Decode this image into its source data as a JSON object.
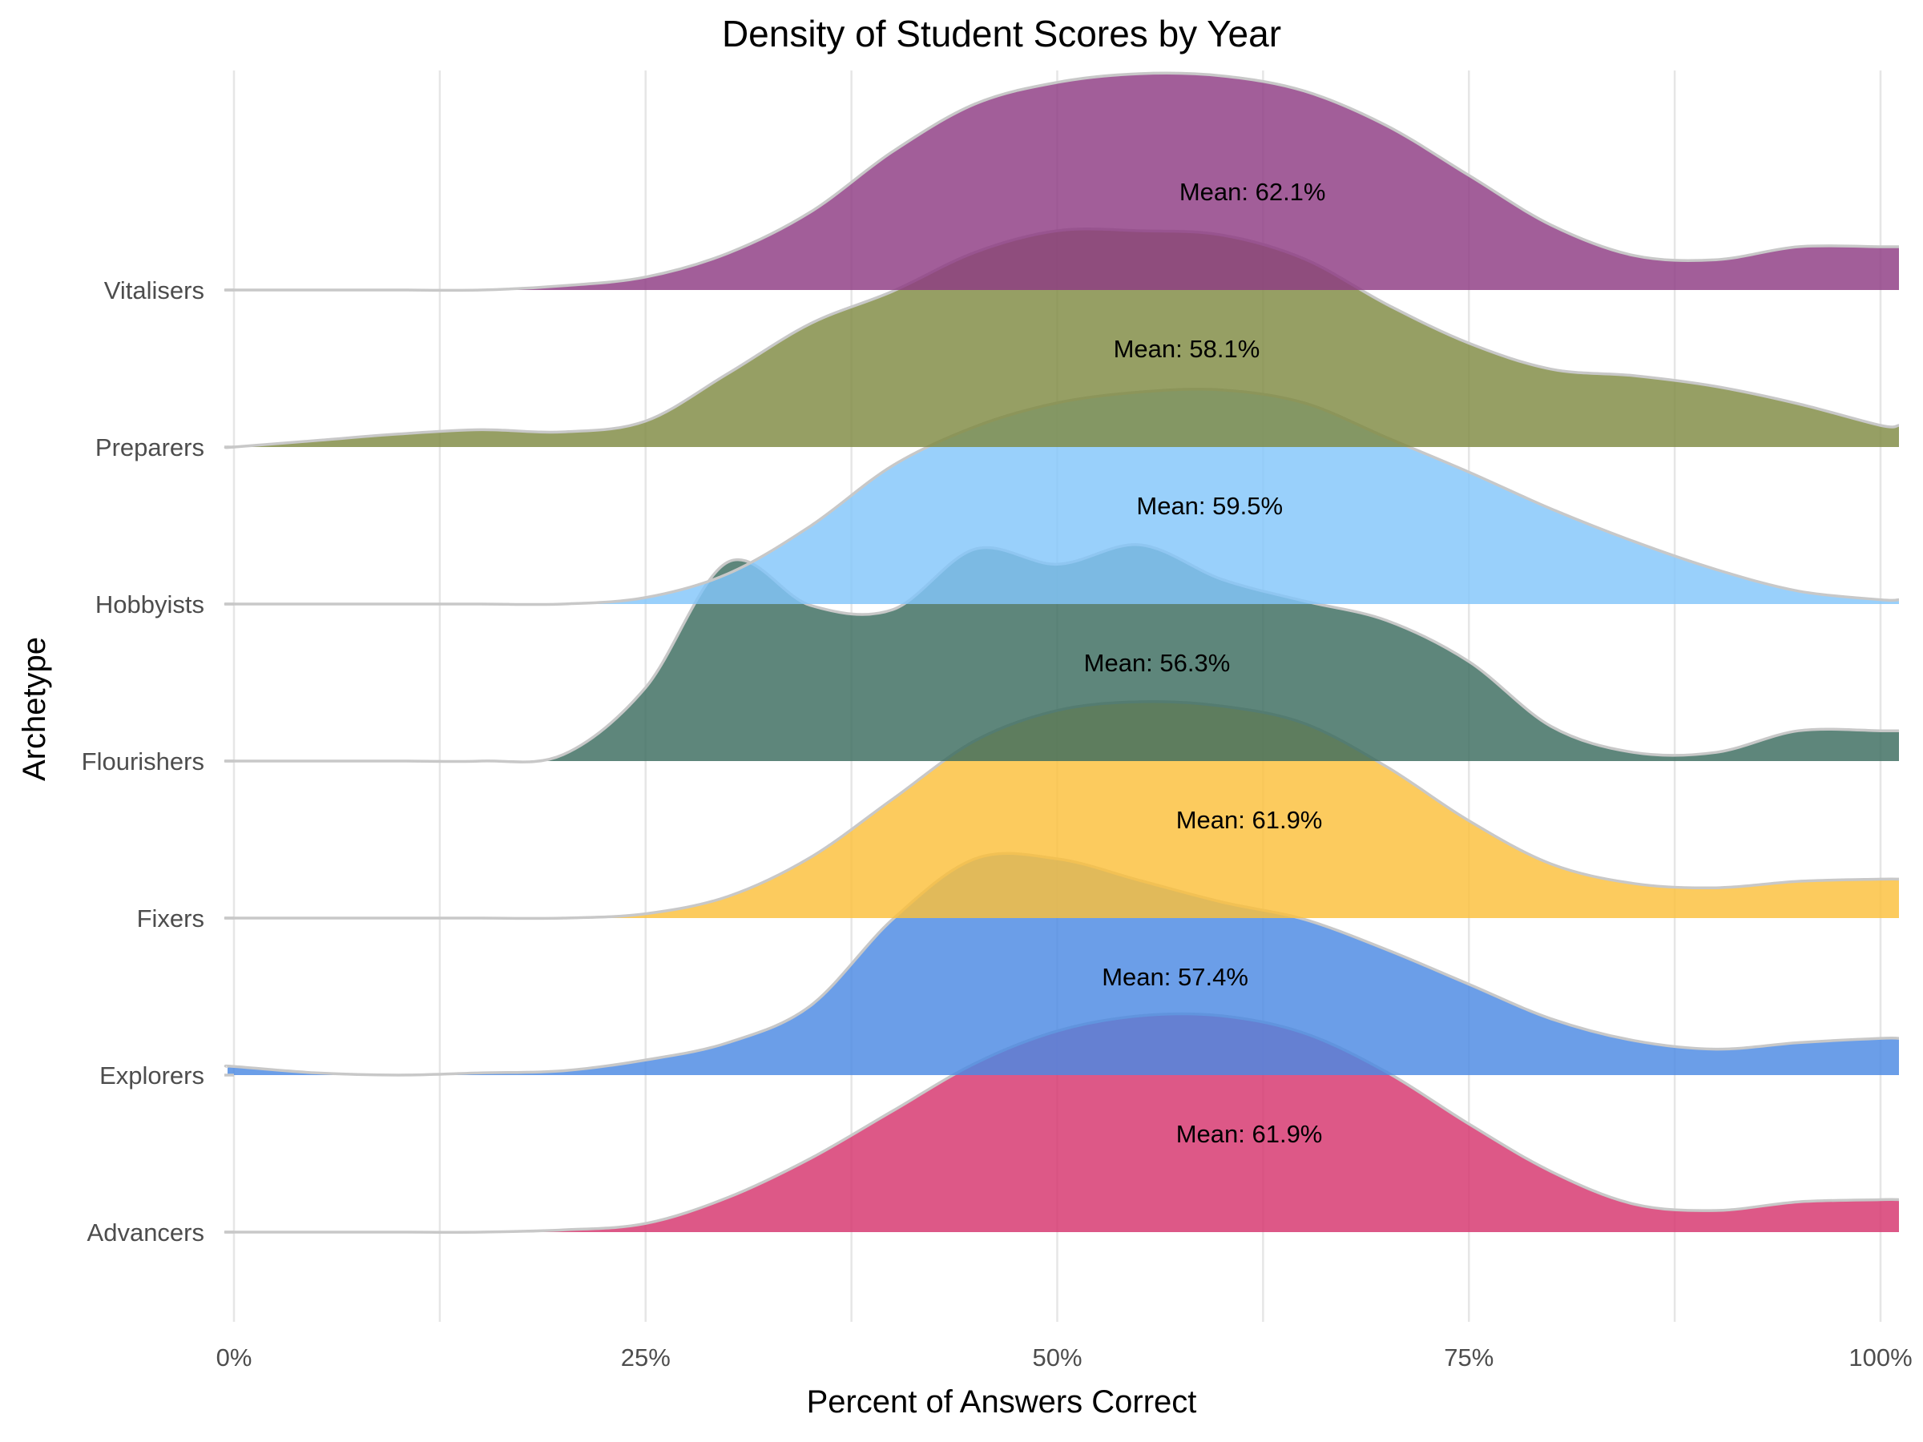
{
  "chart_data": {
    "type": "ridgeline",
    "title": "Density of Student Scores by Year",
    "xlabel": "Percent of Answers Correct",
    "ylabel": "Archetype",
    "xlim": [
      0,
      100
    ],
    "x_ticks": [
      {
        "value": 0,
        "label": "0%"
      },
      {
        "value": 25,
        "label": "25%"
      },
      {
        "value": 50,
        "label": "50%"
      },
      {
        "value": 75,
        "label": "75%"
      },
      {
        "value": 100,
        "label": "100%"
      }
    ],
    "grid": true,
    "legend": "none",
    "density_x": [
      0,
      5,
      10,
      15,
      20,
      25,
      30,
      35,
      40,
      45,
      50,
      55,
      60,
      65,
      70,
      75,
      80,
      85,
      90,
      95,
      100
    ],
    "series": [
      {
        "name": "Advancers",
        "color": "#d6336c",
        "mean": 61.9,
        "mean_label": "Mean: 61.9%",
        "density": [
          0,
          0,
          0,
          0,
          0.01,
          0.04,
          0.16,
          0.34,
          0.56,
          0.78,
          0.93,
          1.0,
          1.0,
          0.92,
          0.74,
          0.5,
          0.28,
          0.13,
          0.1,
          0.14,
          0.15
        ]
      },
      {
        "name": "Explorers",
        "color": "#4a89e3",
        "mean": 57.4,
        "mean_label": "Mean: 57.4%",
        "density": [
          0.04,
          0.01,
          0.0,
          0.01,
          0.02,
          0.07,
          0.15,
          0.32,
          0.72,
          1.0,
          1.0,
          0.9,
          0.8,
          0.72,
          0.58,
          0.42,
          0.26,
          0.16,
          0.12,
          0.15,
          0.17
        ]
      },
      {
        "name": "Fixers",
        "color": "#fbbf3a",
        "mean": 61.9,
        "mean_label": "Mean: 61.9%",
        "density": [
          0,
          0,
          0,
          0,
          0,
          0.02,
          0.1,
          0.28,
          0.55,
          0.82,
          0.96,
          1.0,
          0.98,
          0.9,
          0.7,
          0.45,
          0.25,
          0.16,
          0.14,
          0.17,
          0.18
        ]
      },
      {
        "name": "Flourishers",
        "color": "#3b6b5e",
        "mean": 56.3,
        "mean_label": "Mean: 56.3%",
        "density": [
          0,
          0,
          0,
          0,
          0.03,
          0.34,
          0.92,
          0.72,
          0.7,
          0.98,
          0.91,
          1.0,
          0.84,
          0.74,
          0.65,
          0.46,
          0.16,
          0.04,
          0.04,
          0.14,
          0.14
        ]
      },
      {
        "name": "Hobbyists",
        "color": "#82c6fa",
        "mean": 59.5,
        "mean_label": "Mean: 59.5%",
        "density": [
          0,
          0,
          0,
          0,
          0,
          0.03,
          0.14,
          0.36,
          0.64,
          0.82,
          0.93,
          0.98,
          0.99,
          0.93,
          0.77,
          0.61,
          0.44,
          0.29,
          0.16,
          0.06,
          0.02
        ]
      },
      {
        "name": "Preparers",
        "color": "#7f8a42",
        "mean": 58.1,
        "mean_label": "Mean: 58.1%",
        "density": [
          0,
          0.03,
          0.06,
          0.08,
          0.07,
          0.12,
          0.34,
          0.57,
          0.72,
          0.9,
          1.0,
          1.0,
          0.98,
          0.87,
          0.66,
          0.48,
          0.36,
          0.33,
          0.28,
          0.2,
          0.1
        ]
      },
      {
        "name": "Vitalisers",
        "color": "#8e3b82",
        "mean": 62.1,
        "mean_label": "Mean: 62.1%",
        "density": [
          0,
          0,
          0,
          0,
          0.02,
          0.06,
          0.17,
          0.36,
          0.64,
          0.86,
          0.96,
          1.0,
          0.99,
          0.92,
          0.76,
          0.53,
          0.3,
          0.16,
          0.14,
          0.2,
          0.2
        ]
      }
    ]
  }
}
